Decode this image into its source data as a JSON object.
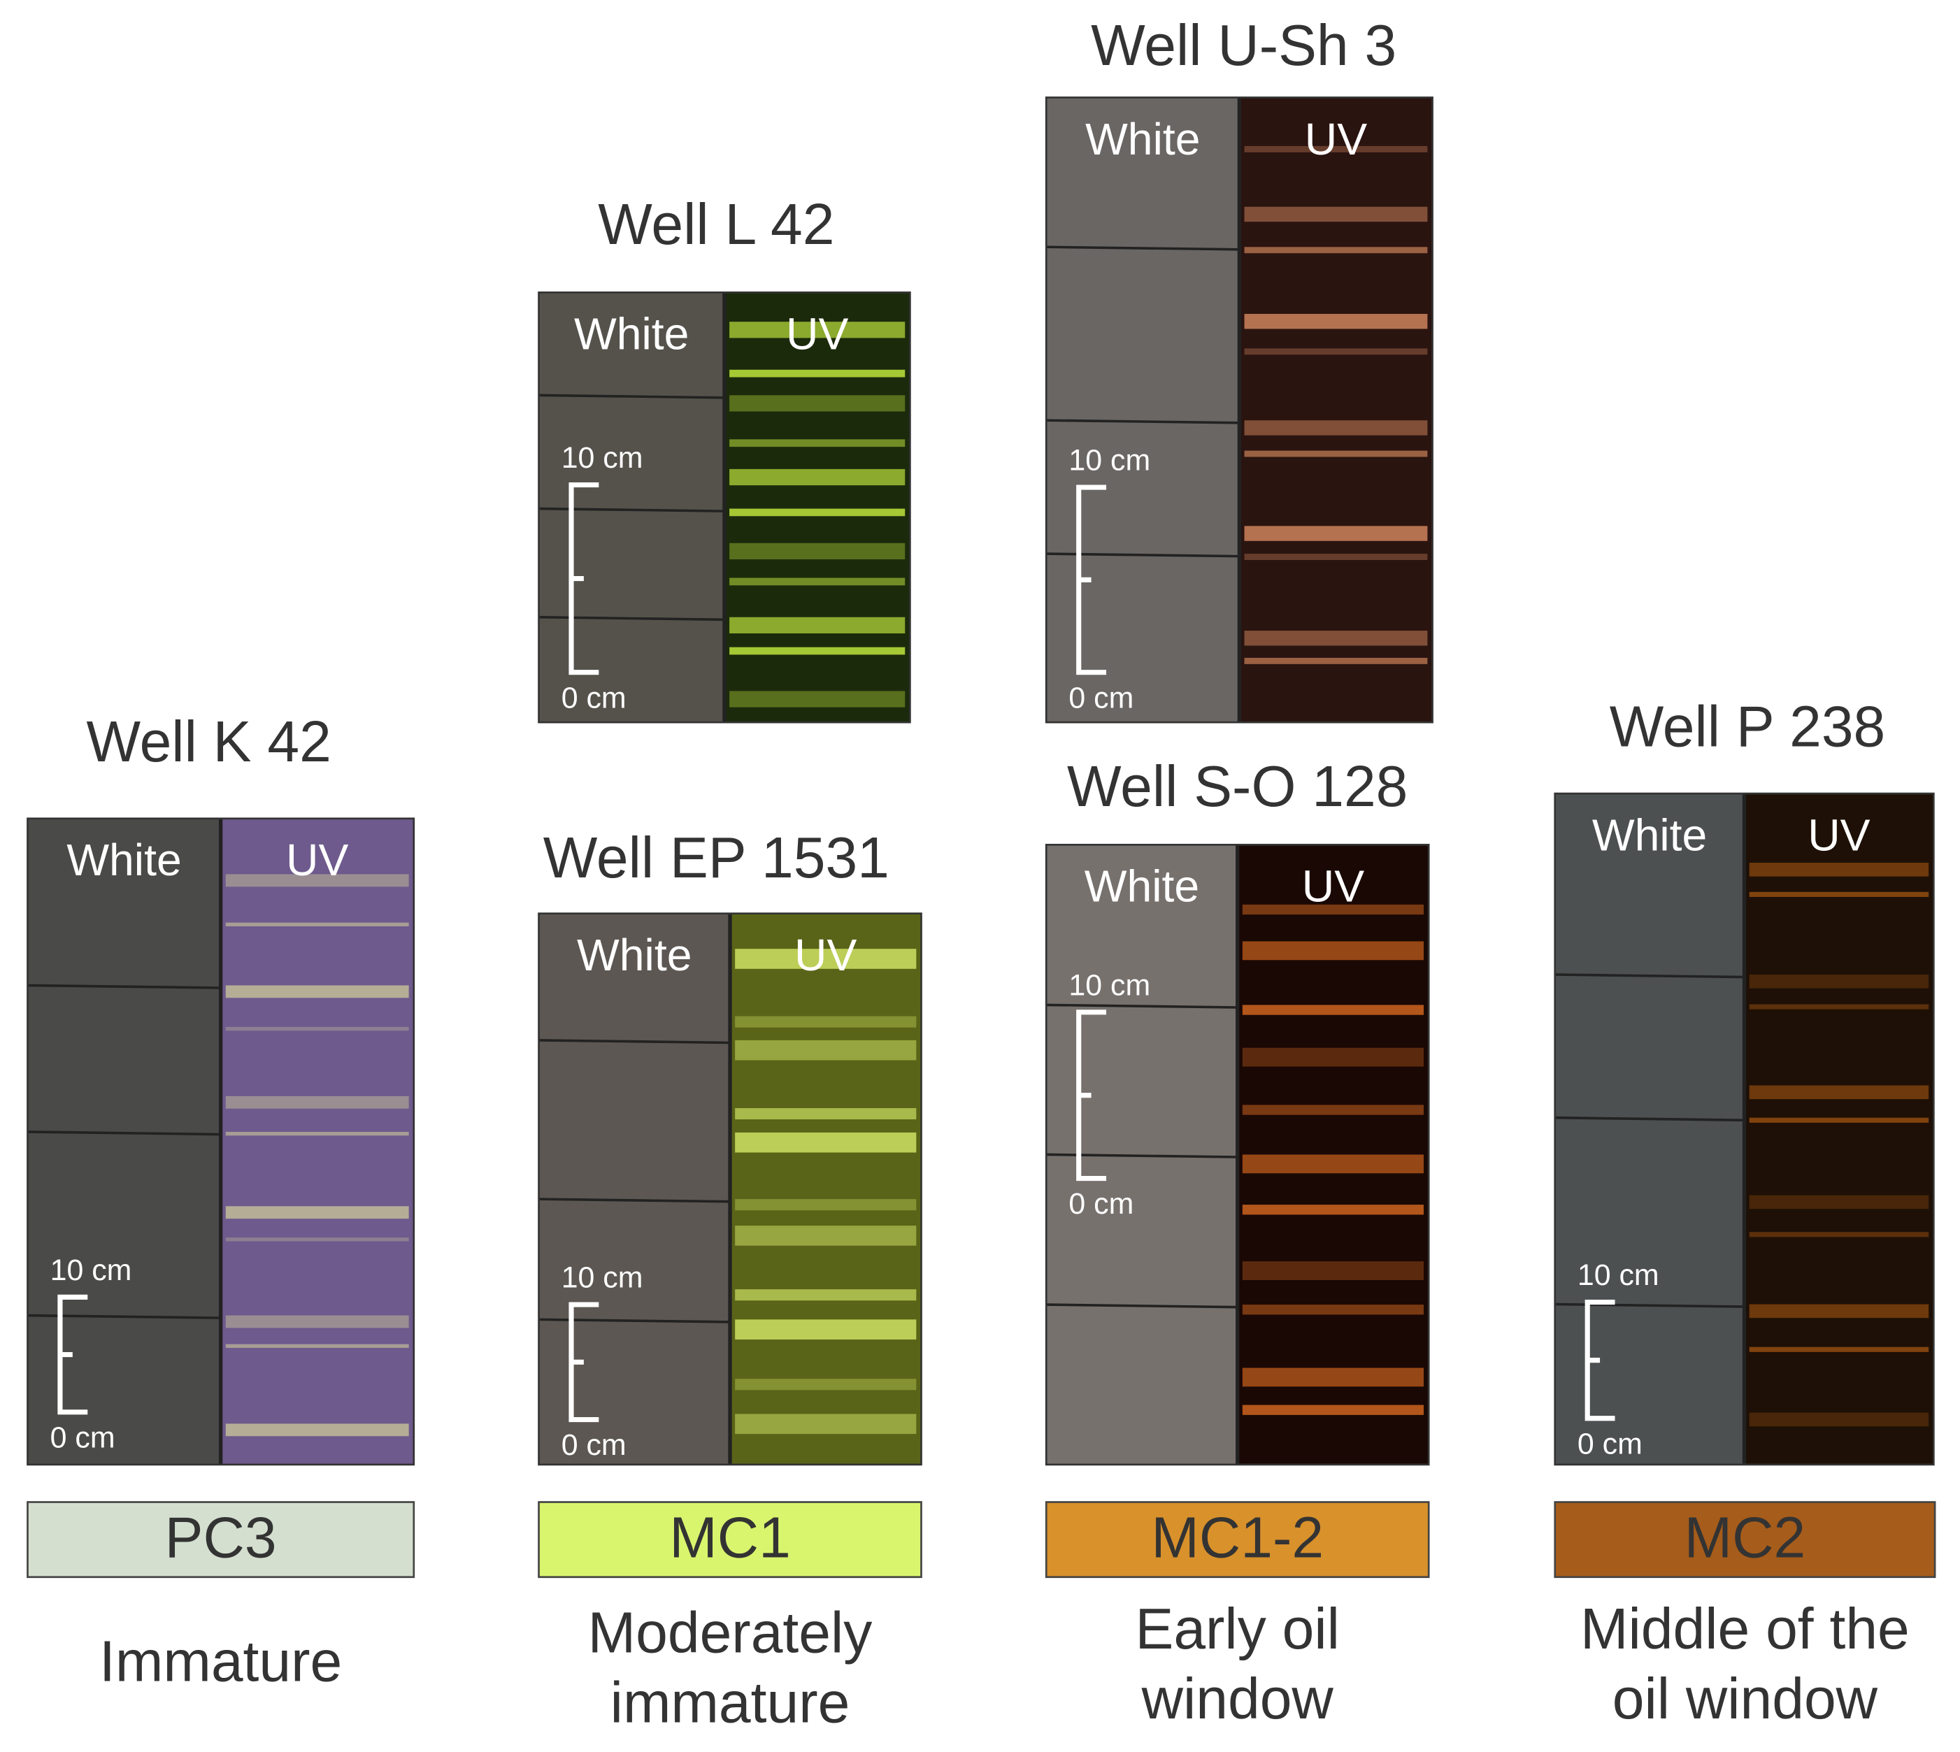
{
  "panels": [
    {
      "well": "Well K 42",
      "white_label": "White",
      "uv_label": "UV",
      "scale_top": "10 cm",
      "scale_bottom": "0 cm"
    },
    {
      "well": "Well L 42",
      "white_label": "White",
      "uv_label": "UV",
      "scale_top": "10 cm",
      "scale_bottom": "0 cm"
    },
    {
      "well": "Well EP 1531",
      "white_label": "White",
      "uv_label": "UV",
      "scale_top": "10 cm",
      "scale_bottom": "0 cm"
    },
    {
      "well": "Well U-Sh 3",
      "white_label": "White",
      "uv_label": "UV",
      "scale_top": "10 cm",
      "scale_bottom": "0 cm"
    },
    {
      "well": "Well S-O 128",
      "white_label": "White",
      "uv_label": "UV",
      "scale_top": "10 cm",
      "scale_bottom": "0 cm"
    },
    {
      "well": "Well P 238",
      "white_label": "White",
      "uv_label": "UV",
      "scale_top": "10 cm",
      "scale_bottom": "0 cm"
    }
  ],
  "classes": [
    {
      "code": "PC3",
      "description": [
        "Immature"
      ]
    },
    {
      "code": "MC1",
      "description": [
        "Moderately",
        "immature"
      ]
    },
    {
      "code": "MC1-2",
      "description": [
        "Early oil",
        "window"
      ]
    },
    {
      "code": "MC2",
      "description": [
        "Middle of the",
        "oil window"
      ]
    }
  ]
}
